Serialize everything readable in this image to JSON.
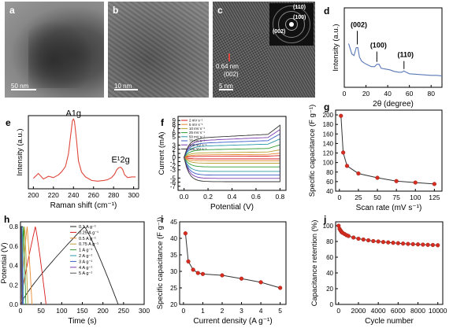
{
  "micrographs": {
    "a": {
      "label": "a",
      "scale": "50 nm"
    },
    "b": {
      "label": "b",
      "scale": "10 nm"
    },
    "c": {
      "label": "c",
      "scale": "5 nm",
      "spacing": "0.64 nm",
      "plane": "(002)",
      "saed_rings": [
        "(110)",
        "(100)",
        "(002)"
      ]
    }
  },
  "colors": {
    "red_trace": "#e0473c",
    "marker_red": "#d62d20",
    "line_dark": "#333333",
    "d_trace": "#5a78b6",
    "cv_series": [
      "#d81b1b",
      "#e88a2e",
      "#b8a033",
      "#2d9a2d",
      "#2a9aa8",
      "#3a5fc9",
      "#7a3bb0",
      "#333333"
    ]
  },
  "chart_data": [
    {
      "id": "d",
      "label": "d",
      "type": "line",
      "xlabel": "2θ (degree)",
      "ylabel": "Intensity (a.u.)",
      "xlim": [
        0,
        90
      ],
      "xticks": [
        "0",
        "20",
        "40",
        "60",
        "80"
      ],
      "peak_labels": [
        "(002)",
        "(100)",
        "(110)"
      ],
      "x": [
        4,
        7,
        9,
        11,
        12.5,
        14,
        16,
        19,
        22,
        25,
        28,
        30,
        32,
        34,
        38,
        42,
        46,
        50,
        53,
        55,
        57,
        60,
        65,
        70,
        75,
        80,
        85,
        90
      ],
      "y": [
        0.55,
        0.42,
        0.4,
        0.5,
        0.5,
        0.38,
        0.33,
        0.3,
        0.28,
        0.26,
        0.26,
        0.29,
        0.29,
        0.24,
        0.23,
        0.22,
        0.2,
        0.19,
        0.19,
        0.205,
        0.19,
        0.17,
        0.165,
        0.16,
        0.155,
        0.15,
        0.15,
        0.145
      ]
    },
    {
      "id": "e",
      "label": "e",
      "type": "line",
      "xlabel": "Raman shift (cm⁻¹)",
      "ylabel": "Intensity (a.u.)",
      "xlim": [
        195,
        305
      ],
      "xticks": [
        "200",
        "220",
        "240",
        "260",
        "280",
        "300"
      ],
      "peak_labels": [
        "A1g",
        "E¹2g"
      ],
      "x": [
        200,
        205,
        210,
        215,
        220,
        225,
        228,
        232,
        235,
        237,
        239,
        240,
        241,
        243,
        245,
        248,
        252,
        258,
        264,
        270,
        274,
        278,
        281,
        283,
        285,
        287,
        289,
        291,
        294,
        298,
        302
      ],
      "y": [
        0.15,
        0.22,
        0.14,
        0.18,
        0.16,
        0.2,
        0.24,
        0.32,
        0.5,
        0.75,
        0.98,
        1.0,
        0.97,
        0.7,
        0.4,
        0.24,
        0.17,
        0.12,
        0.11,
        0.12,
        0.13,
        0.16,
        0.21,
        0.27,
        0.3,
        0.31,
        0.28,
        0.2,
        0.16,
        0.17,
        0.17
      ]
    },
    {
      "id": "f",
      "label": "f",
      "type": "line",
      "xlabel": "Potential (V)",
      "ylabel": "Current (mA)",
      "xlim": [
        -0.05,
        0.85
      ],
      "ylim": [
        -8,
        10
      ],
      "xticks": [
        "0.0",
        "0.2",
        "0.4",
        "0.6",
        "0.8"
      ],
      "yticks": [
        "-7",
        "-6",
        "-5",
        "-3",
        "-2",
        "-1",
        "0",
        "1",
        "2",
        "3",
        "5",
        "6",
        "7",
        "8",
        "9"
      ],
      "series": [
        {
          "name": "2 mV s⁻¹",
          "amp": 0.35
        },
        {
          "name": "5 mV s⁻¹",
          "amp": 0.8
        },
        {
          "name": "10 mV s⁻¹",
          "amp": 1.4
        },
        {
          "name": "25 mV s⁻¹",
          "amp": 2.3
        },
        {
          "name": "50 mV s⁻¹",
          "amp": 3.4
        },
        {
          "name": "75 mV s⁻¹",
          "amp": 4.3
        },
        {
          "name": "100 mV s⁻¹",
          "amp": 5.1
        },
        {
          "name": "125 mV s⁻¹",
          "amp": 5.9
        }
      ]
    },
    {
      "id": "g",
      "label": "g",
      "type": "line",
      "xlabel": "Scan rate (mV s⁻¹)",
      "ylabel": "Specific capacitance (F g⁻¹)",
      "xlim": [
        -5,
        135
      ],
      "ylim": [
        40,
        210
      ],
      "xticks": [
        "0",
        "25",
        "50",
        "75",
        "100",
        "125"
      ],
      "yticks": [
        "40",
        "60",
        "80",
        "100",
        "120",
        "140",
        "160",
        "180",
        "200"
      ],
      "x": [
        2,
        5,
        10,
        25,
        50,
        75,
        100,
        125
      ],
      "y": [
        198,
        121,
        93,
        77,
        68,
        61,
        58,
        55
      ]
    },
    {
      "id": "h",
      "label": "h",
      "type": "line",
      "xlabel": "Time (s)",
      "ylabel": "Potential (V)",
      "xlim": [
        0,
        300
      ],
      "ylim": [
        0,
        0.85
      ],
      "xticks": [
        "0",
        "50",
        "100",
        "150",
        "200",
        "250",
        "300"
      ],
      "yticks": [
        "0.0",
        "0.2",
        "0.4",
        "0.6",
        "0.8"
      ],
      "series": [
        {
          "name": "0.1 A g⁻¹",
          "charge": 155,
          "discharge": 82
        },
        {
          "name": "0.25 A g⁻¹",
          "charge": 36,
          "discharge": 26
        },
        {
          "name": "0.5 A g⁻¹",
          "charge": 16,
          "discharge": 12
        },
        {
          "name": "0.75 A g⁻¹",
          "charge": 10,
          "discharge": 8
        },
        {
          "name": "1 A g⁻¹",
          "charge": 7,
          "discharge": 6
        },
        {
          "name": "2 A g⁻¹",
          "charge": 4,
          "discharge": 3.5
        },
        {
          "name": "3 A g⁻¹",
          "charge": 3,
          "discharge": 2.5
        },
        {
          "name": "4 A g⁻¹",
          "charge": 2.2,
          "discharge": 2
        },
        {
          "name": "5 A g⁻¹",
          "charge": 1.8,
          "discharge": 1.6
        }
      ]
    },
    {
      "id": "i",
      "label": "i",
      "type": "line",
      "xlabel": "Current density (A g⁻¹)",
      "ylabel": "Specific capacitance (F g⁻¹)",
      "xlim": [
        -0.2,
        5.3
      ],
      "ylim": [
        20,
        45
      ],
      "xticks": [
        "0",
        "1",
        "2",
        "3",
        "4",
        "5"
      ],
      "yticks": [
        "20",
        "25",
        "30",
        "35",
        "40",
        "45"
      ],
      "x": [
        0.1,
        0.25,
        0.5,
        0.75,
        1,
        2,
        3,
        4,
        5
      ],
      "y": [
        41.5,
        33,
        30.5,
        29.5,
        29.2,
        28.8,
        27.8,
        26.7,
        25
      ]
    },
    {
      "id": "j",
      "label": "j",
      "type": "line",
      "xlabel": "Cycle number",
      "ylabel": "Capacitance retention (%)",
      "xlim": [
        -300,
        10500
      ],
      "ylim": [
        0,
        105
      ],
      "xticks": [
        "0",
        "2000",
        "4000",
        "6000",
        "8000",
        "10000"
      ],
      "yticks": [
        "0",
        "20",
        "40",
        "60",
        "80",
        "100"
      ],
      "x": [
        0,
        100,
        200,
        300,
        400,
        600,
        800,
        1000,
        1500,
        2000,
        2500,
        3000,
        3500,
        4000,
        4500,
        5000,
        5500,
        6000,
        6500,
        7000,
        7500,
        8000,
        8500,
        9000,
        9500,
        10000
      ],
      "y": [
        100,
        96,
        94,
        92,
        91,
        89.5,
        88,
        87,
        85,
        83.5,
        82.5,
        81.5,
        80.5,
        80,
        79.3,
        78.8,
        78.3,
        77.8,
        77.3,
        76.9,
        76.6,
        76.3,
        76,
        75.7,
        75.5,
        75.2
      ]
    }
  ]
}
